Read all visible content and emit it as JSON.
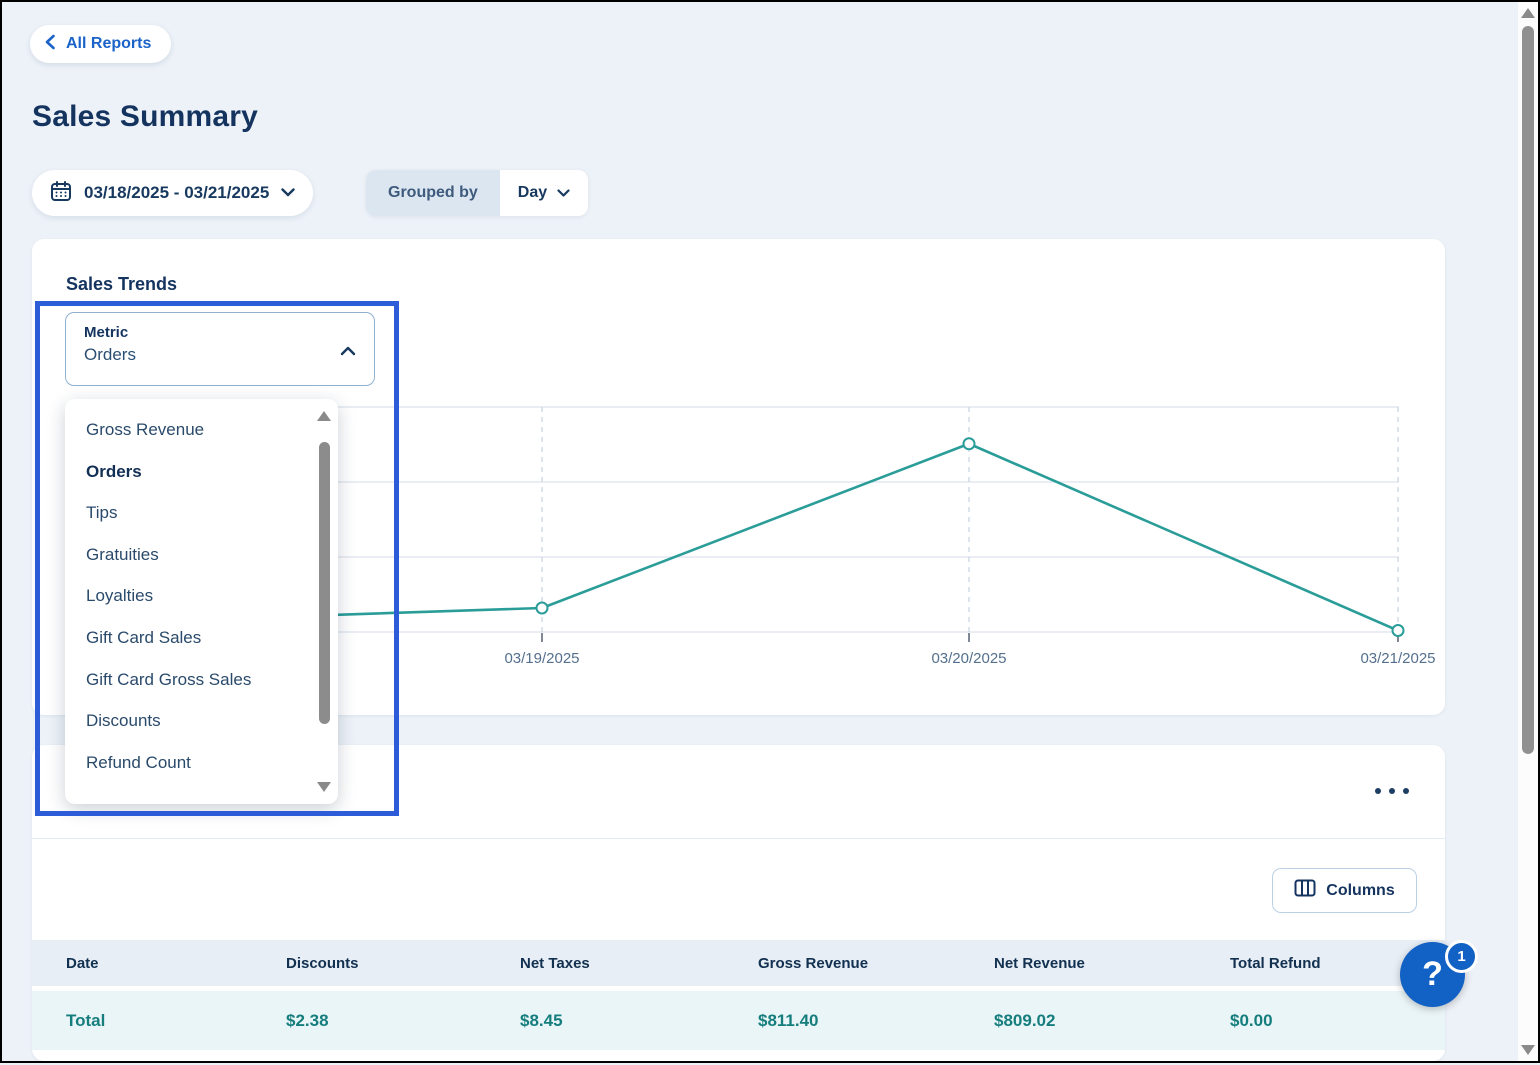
{
  "page": {
    "back_button": "All Reports",
    "title": "Sales Summary"
  },
  "filters": {
    "date_range": "03/18/2025 - 03/21/2025",
    "grouped_by_label": "Grouped by",
    "grouped_by_value": "Day"
  },
  "sales_trends": {
    "title": "Sales Trends",
    "metric_label": "Metric",
    "metric_value": "Orders",
    "options": [
      "Gross Revenue",
      "Orders",
      "Tips",
      "Gratuities",
      "Loyalties",
      "Gift Card Sales",
      "Gift Card Gross Sales",
      "Discounts",
      "Refund Count"
    ],
    "selected_option": "Orders"
  },
  "chart_data": {
    "type": "line",
    "title": "Sales Trends",
    "series": [
      {
        "name": "Orders",
        "values_gridline_units": [
          0.13,
          0.32,
          2.51,
          0.02
        ]
      }
    ],
    "categories": [
      "03/18/2025",
      "03/19/2025",
      "03/20/2025",
      "03/21/2025"
    ],
    "ylabel": "",
    "y_axis_note": "no y tick labels visible (covered by open metric dropdown); values estimated in units of one horizontal gridline spacing above the bottom gridline",
    "grid": "4 horizontal solid gridlines, dashed vertical gridline per date",
    "line_color": "#2a9d99",
    "marker": "open-circle"
  },
  "table": {
    "headers": [
      "Date",
      "Discounts",
      "Net Taxes",
      "Gross Revenue",
      "Net Revenue",
      "Total Refund"
    ],
    "total_row": [
      "Total",
      "$2.38",
      "$8.45",
      "$811.40",
      "$809.02",
      "$0.00"
    ],
    "columns_button": "Columns"
  },
  "help": {
    "symbol": "?",
    "badge": "1"
  },
  "colors": {
    "accent_blue": "#1b63c8",
    "navy_text": "#14335e",
    "teal_line": "#2a9d99",
    "teal_value": "#157e7d",
    "annotation_blue": "#2d5cd8",
    "header_row_bg": "#e7eef6",
    "total_row_bg": "#eaf5f8",
    "page_bg": "#edf2f8"
  },
  "icons": [
    "chevron-left-icon",
    "calendar-icon",
    "chevron-down-icon",
    "chevron-up-icon",
    "ellipsis-icon",
    "columns-icon",
    "question-mark-icon",
    "scroll-up-icon",
    "scroll-down-icon"
  ]
}
